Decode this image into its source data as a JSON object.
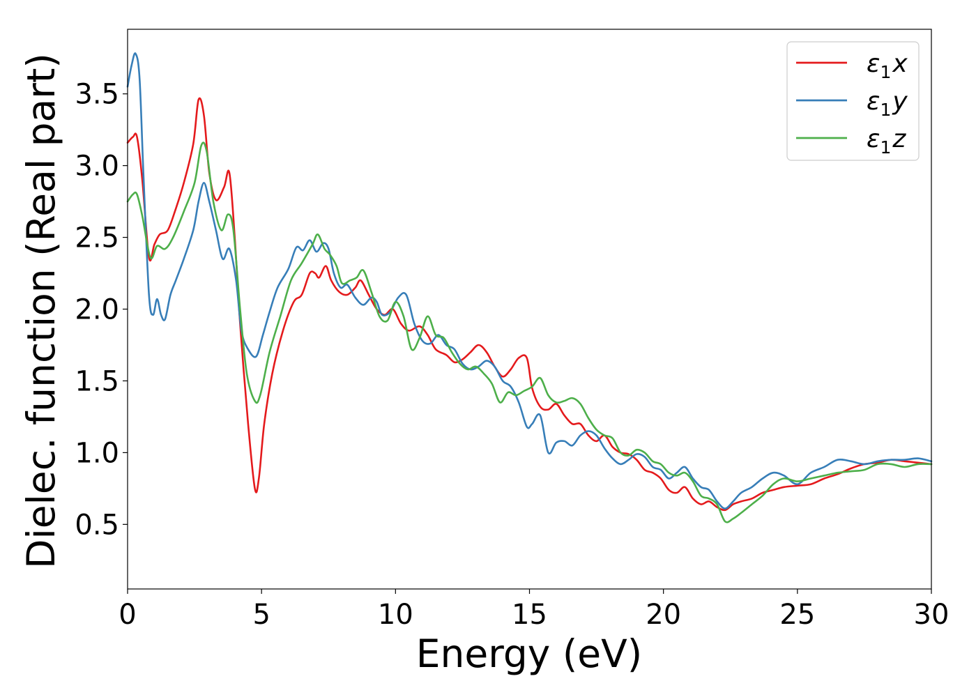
{
  "chart_data": {
    "type": "line",
    "title": "",
    "xlabel": "Energy (eV)",
    "ylabel": "Dielec. function (Real part)",
    "xlim": [
      0,
      30
    ],
    "ylim": [
      0.05,
      3.95
    ],
    "xticks": [
      "0",
      "5",
      "10",
      "15",
      "20",
      "25",
      "30"
    ],
    "yticks": [
      "0.5",
      "1.0",
      "1.5",
      "2.0",
      "2.5",
      "3.0",
      "3.5"
    ],
    "grid": false,
    "legend_position": "top-right",
    "series": [
      {
        "name": "ε1x",
        "legend_base": "ε",
        "legend_sub": "1",
        "legend_suffix": "x",
        "color": "#e41a1c",
        "x": [
          0,
          0.2,
          0.35,
          0.55,
          0.8,
          1.0,
          1.2,
          1.5,
          1.8,
          2.1,
          2.45,
          2.65,
          2.85,
          3.05,
          3.3,
          3.6,
          3.8,
          4.0,
          4.2,
          4.5,
          4.75,
          4.9,
          5.1,
          5.4,
          5.8,
          6.2,
          6.5,
          6.8,
          7.0,
          7.15,
          7.4,
          7.6,
          7.9,
          8.2,
          8.5,
          8.7,
          9.0,
          9.3,
          9.6,
          9.9,
          10.2,
          10.5,
          10.9,
          11.2,
          11.5,
          11.9,
          12.2,
          12.5,
          12.8,
          13.1,
          13.4,
          13.7,
          14.0,
          14.3,
          14.6,
          14.9,
          15.1,
          15.4,
          15.7,
          16.0,
          16.3,
          16.6,
          16.9,
          17.2,
          17.5,
          17.8,
          18.1,
          18.4,
          18.7,
          19.0,
          19.3,
          19.6,
          19.9,
          20.2,
          20.5,
          20.8,
          21.1,
          21.4,
          21.7,
          22.0,
          22.3,
          22.6,
          22.9,
          23.3,
          23.7,
          24.1,
          24.5,
          25.0,
          25.5,
          26.0,
          26.5,
          27.0,
          27.5,
          28.0,
          28.5,
          29.0,
          29.5,
          30.0
        ],
        "y": [
          3.16,
          3.2,
          3.2,
          2.9,
          2.36,
          2.45,
          2.52,
          2.55,
          2.7,
          2.88,
          3.15,
          3.46,
          3.35,
          2.95,
          2.76,
          2.85,
          2.95,
          2.5,
          1.9,
          1.2,
          0.75,
          0.82,
          1.2,
          1.55,
          1.85,
          2.05,
          2.1,
          2.25,
          2.25,
          2.22,
          2.3,
          2.2,
          2.12,
          2.1,
          2.15,
          2.2,
          2.1,
          2.0,
          1.96,
          2.0,
          1.9,
          1.85,
          1.88,
          1.82,
          1.72,
          1.68,
          1.63,
          1.65,
          1.7,
          1.75,
          1.7,
          1.6,
          1.53,
          1.58,
          1.66,
          1.66,
          1.45,
          1.32,
          1.3,
          1.34,
          1.26,
          1.2,
          1.2,
          1.12,
          1.08,
          1.12,
          1.04,
          1.0,
          0.99,
          0.95,
          0.88,
          0.86,
          0.82,
          0.74,
          0.72,
          0.76,
          0.68,
          0.64,
          0.66,
          0.62,
          0.6,
          0.64,
          0.66,
          0.68,
          0.72,
          0.74,
          0.76,
          0.77,
          0.78,
          0.82,
          0.85,
          0.89,
          0.92,
          0.93,
          0.95,
          0.94,
          0.93,
          0.92
        ]
      },
      {
        "name": "ε1y",
        "legend_base": "ε",
        "legend_sub": "1",
        "legend_suffix": "y",
        "color": "#377eb8",
        "x": [
          0,
          0.15,
          0.3,
          0.45,
          0.6,
          0.8,
          0.95,
          1.1,
          1.25,
          1.4,
          1.6,
          1.8,
          2.1,
          2.45,
          2.65,
          2.85,
          3.05,
          3.3,
          3.55,
          3.8,
          4.05,
          4.25,
          4.5,
          4.8,
          5.05,
          5.3,
          5.6,
          6.0,
          6.3,
          6.55,
          6.8,
          7.05,
          7.3,
          7.5,
          7.7,
          7.95,
          8.2,
          8.5,
          8.8,
          9.1,
          9.3,
          9.5,
          9.8,
          10.1,
          10.4,
          10.7,
          11.0,
          11.3,
          11.6,
          11.9,
          12.2,
          12.5,
          12.8,
          13.1,
          13.4,
          13.7,
          14.0,
          14.3,
          14.6,
          14.9,
          15.1,
          15.4,
          15.7,
          16.0,
          16.3,
          16.6,
          16.9,
          17.2,
          17.5,
          17.8,
          18.1,
          18.4,
          18.7,
          19.0,
          19.3,
          19.6,
          19.9,
          20.2,
          20.5,
          20.8,
          21.1,
          21.4,
          21.7,
          22.0,
          22.3,
          22.6,
          22.9,
          23.3,
          23.7,
          24.1,
          24.5,
          25.0,
          25.5,
          26.0,
          26.5,
          27.0,
          27.5,
          28.0,
          28.5,
          29.0,
          29.5,
          30.0
        ],
        "y": [
          3.55,
          3.7,
          3.78,
          3.6,
          2.9,
          2.1,
          1.96,
          2.07,
          1.96,
          1.93,
          2.1,
          2.2,
          2.35,
          2.55,
          2.75,
          2.88,
          2.75,
          2.55,
          2.35,
          2.42,
          2.2,
          1.85,
          1.72,
          1.67,
          1.82,
          1.98,
          2.15,
          2.28,
          2.43,
          2.41,
          2.48,
          2.4,
          2.46,
          2.42,
          2.25,
          2.15,
          2.17,
          2.08,
          2.03,
          2.08,
          2.05,
          1.96,
          1.98,
          2.08,
          2.1,
          1.9,
          1.78,
          1.76,
          1.82,
          1.75,
          1.72,
          1.62,
          1.58,
          1.6,
          1.64,
          1.6,
          1.5,
          1.46,
          1.35,
          1.18,
          1.2,
          1.26,
          1.0,
          1.07,
          1.08,
          1.05,
          1.12,
          1.15,
          1.12,
          1.03,
          0.96,
          0.92,
          0.95,
          0.99,
          0.97,
          0.9,
          0.88,
          0.82,
          0.86,
          0.9,
          0.82,
          0.76,
          0.74,
          0.66,
          0.61,
          0.66,
          0.72,
          0.76,
          0.82,
          0.86,
          0.84,
          0.78,
          0.86,
          0.9,
          0.95,
          0.94,
          0.92,
          0.94,
          0.95,
          0.95,
          0.96,
          0.94
        ]
      },
      {
        "name": "ε1z",
        "legend_base": "ε",
        "legend_sub": "1",
        "legend_suffix": "z",
        "color": "#4daf4a",
        "x": [
          0,
          0.2,
          0.35,
          0.55,
          0.85,
          1.1,
          1.4,
          1.7,
          2.1,
          2.5,
          2.75,
          2.95,
          3.2,
          3.5,
          3.75,
          3.95,
          4.2,
          4.45,
          4.75,
          4.95,
          5.3,
          5.7,
          6.1,
          6.5,
          6.9,
          7.1,
          7.35,
          7.55,
          7.8,
          8.0,
          8.3,
          8.55,
          8.8,
          9.1,
          9.4,
          9.7,
          10.0,
          10.3,
          10.6,
          10.9,
          11.2,
          11.5,
          11.8,
          12.1,
          12.4,
          12.7,
          13.0,
          13.3,
          13.6,
          13.9,
          14.2,
          14.5,
          14.8,
          15.1,
          15.4,
          15.7,
          16.0,
          16.3,
          16.6,
          16.9,
          17.2,
          17.5,
          17.8,
          18.1,
          18.4,
          18.7,
          19.0,
          19.3,
          19.6,
          19.9,
          20.2,
          20.5,
          20.8,
          21.1,
          21.4,
          21.7,
          22.0,
          22.3,
          22.6,
          22.9,
          23.3,
          23.7,
          24.1,
          24.5,
          25.0,
          25.5,
          26.0,
          26.5,
          27.0,
          27.5,
          28.0,
          28.5,
          29.0,
          29.5,
          30.0
        ],
        "y": [
          2.75,
          2.8,
          2.8,
          2.65,
          2.36,
          2.44,
          2.42,
          2.5,
          2.68,
          2.88,
          3.14,
          3.1,
          2.75,
          2.55,
          2.66,
          2.55,
          2.0,
          1.55,
          1.36,
          1.4,
          1.7,
          1.95,
          2.2,
          2.32,
          2.45,
          2.52,
          2.42,
          2.38,
          2.3,
          2.18,
          2.2,
          2.22,
          2.27,
          2.12,
          1.95,
          1.92,
          2.05,
          1.95,
          1.72,
          1.8,
          1.95,
          1.82,
          1.8,
          1.7,
          1.62,
          1.58,
          1.6,
          1.55,
          1.48,
          1.35,
          1.42,
          1.4,
          1.43,
          1.46,
          1.52,
          1.4,
          1.35,
          1.36,
          1.38,
          1.34,
          1.24,
          1.16,
          1.12,
          1.1,
          1.0,
          0.98,
          1.02,
          1.0,
          0.94,
          0.92,
          0.86,
          0.84,
          0.86,
          0.8,
          0.7,
          0.68,
          0.64,
          0.52,
          0.54,
          0.58,
          0.64,
          0.7,
          0.78,
          0.82,
          0.8,
          0.82,
          0.84,
          0.86,
          0.87,
          0.88,
          0.92,
          0.92,
          0.9,
          0.92,
          0.92
        ]
      }
    ]
  }
}
